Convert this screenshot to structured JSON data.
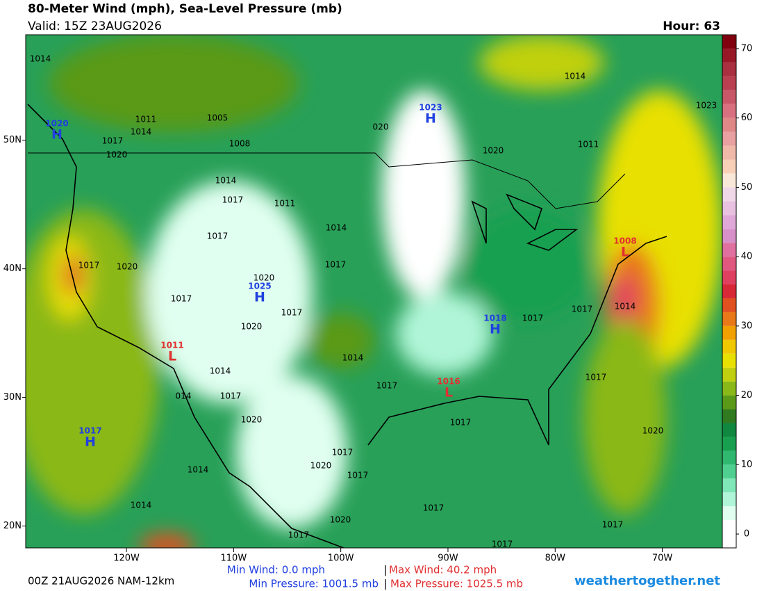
{
  "header": {
    "title": "80-Meter Wind (mph), Sea-Level Pressure (mb)",
    "valid": "Valid: 15Z 23AUG2026",
    "hour": "Hour: 63"
  },
  "map": {
    "xlim": [
      -129.4,
      -64.4
    ],
    "ylim": [
      18.3,
      58.2
    ],
    "xticks": [
      {
        "value": -120,
        "label": "120W"
      },
      {
        "value": -110,
        "label": "110W"
      },
      {
        "value": -100,
        "label": "100W"
      },
      {
        "value": -90,
        "label": "90W"
      },
      {
        "value": -80,
        "label": "80W"
      },
      {
        "value": -70,
        "label": "70W"
      }
    ],
    "yticks": [
      {
        "value": 20,
        "label": "20N"
      },
      {
        "value": 30,
        "label": "30N"
      },
      {
        "value": 40,
        "label": "40N"
      },
      {
        "value": 50,
        "label": "50N"
      }
    ],
    "centers": [
      {
        "letter": "H",
        "value": "1020",
        "color": "#2040e0"
      },
      {
        "letter": "H",
        "value": "1023",
        "color": "#2040e0"
      },
      {
        "letter": "H",
        "value": "1025",
        "color": "#2040e0"
      },
      {
        "letter": "H",
        "value": "1018",
        "color": "#2040e0"
      },
      {
        "letter": "H",
        "value": "1017",
        "color": "#2040e0"
      },
      {
        "letter": "L",
        "value": "1011",
        "color": "#e03030"
      },
      {
        "letter": "L",
        "value": "1016",
        "color": "#e03030"
      },
      {
        "letter": "L",
        "value": "1008",
        "color": "#e03030"
      }
    ],
    "isobar_labels": [
      "1014",
      "1005",
      "1011",
      "1014",
      "1017",
      "1020",
      "1008",
      "1014",
      "1017",
      "1011",
      "1017",
      "1014",
      "1017",
      "1020",
      "1020",
      "1017",
      "1017",
      "1020",
      "1017",
      "1014",
      "1014",
      "1017",
      "014",
      "1017",
      "1020",
      "1017",
      "1014",
      "1020",
      "1017",
      "1017",
      "1014",
      "1020",
      "1017",
      "1017",
      "1017",
      "1017",
      "1020",
      "1017",
      "1014",
      "1017",
      "1017",
      "1020",
      "1011",
      "1014",
      "1023",
      "020"
    ]
  },
  "colorbar": {
    "lim": [
      -2,
      72
    ],
    "ticks": [
      0,
      10,
      20,
      30,
      40,
      50,
      60,
      70
    ],
    "colors": [
      "#ffffff",
      "#ffffff",
      "#e0fff0",
      "#b0f5d8",
      "#80e8b8",
      "#50d090",
      "#30b870",
      "#18a050",
      "#108840",
      "#307a20",
      "#5a9a18",
      "#8ab818",
      "#c0d010",
      "#e8e000",
      "#f0c800",
      "#f0a000",
      "#e87818",
      "#e05020",
      "#d82838",
      "#e04060",
      "#e05880",
      "#e070a0",
      "#d890c8",
      "#e0a8d8",
      "#e8c0e0",
      "#f0d8e8",
      "#f8e8d8",
      "#f8d0b8",
      "#f0b8a8",
      "#e8a0a0",
      "#e08888",
      "#d87080",
      "#c85868",
      "#b84050",
      "#a83040",
      "#981828",
      "#800010"
    ]
  },
  "footer": {
    "run": "00Z 21AUG2026 NAM-12km",
    "min_wind": "Min Wind:  0.0 mph",
    "separator": "|",
    "max_wind": "Max Wind:  40.2 mph",
    "min_pressure": "Min Pressure: 1001.5 mb",
    "max_pressure": "Max Pressure: 1025.5 mb",
    "site": "weathertogether.net"
  }
}
